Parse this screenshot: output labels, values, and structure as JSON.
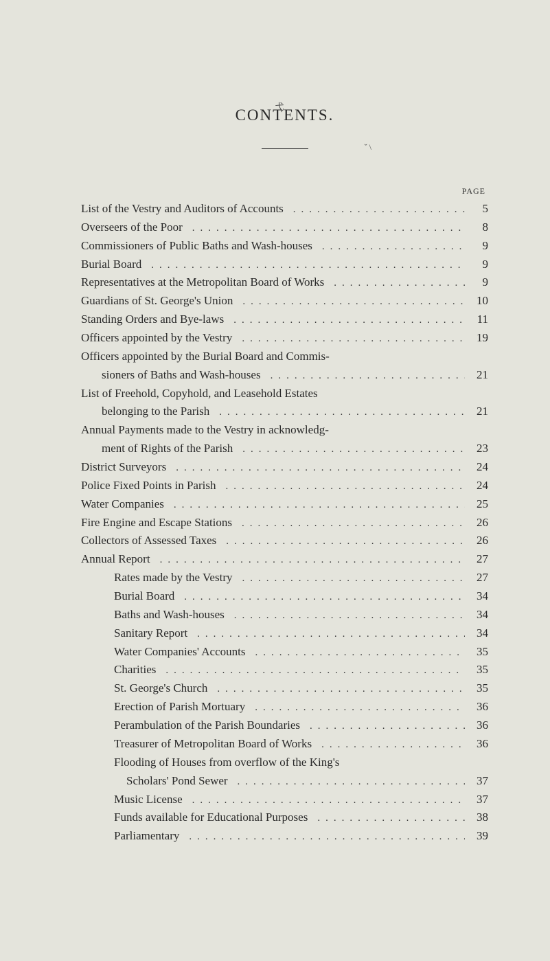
{
  "title": "CONTENTS.",
  "page_header": "PAGE",
  "colors": {
    "background": "#e4e4dc",
    "text": "#2a2a2a",
    "dots": "#3a3a3a"
  },
  "typography": {
    "title_fontsize": 23,
    "title_letterspacing": 2,
    "body_fontsize": 17,
    "line_height": 1.58,
    "page_header_fontsize": 12
  },
  "entries": [
    {
      "label": "List of the Vestry and Auditors of Accounts",
      "page": "5",
      "indent": 0
    },
    {
      "label": "Overseers of the Poor",
      "page": "8",
      "indent": 0
    },
    {
      "label": "Commissioners of Public Baths and Wash-houses",
      "page": "9",
      "indent": 0
    },
    {
      "label": "Burial Board",
      "page": "9",
      "indent": 0
    },
    {
      "label": "Representatives at the Metropolitan Board of Works",
      "page": "9",
      "indent": 0
    },
    {
      "label": "Guardians of St. George's Union",
      "page": "10",
      "indent": 0
    },
    {
      "label": "Standing Orders and Bye-laws",
      "page": "11",
      "indent": 0
    },
    {
      "label": "Officers appointed by the Vestry",
      "page": "19",
      "indent": 0
    },
    {
      "label": "Officers appointed by the Burial Board and Commis-",
      "page": "",
      "indent": 0,
      "nodots": true
    },
    {
      "label": "sioners of Baths and Wash-houses",
      "page": "21",
      "indent": 1
    },
    {
      "label": "List of Freehold, Copyhold, and Leasehold Estates",
      "page": "",
      "indent": 0,
      "nodots": true
    },
    {
      "label": "belonging to the Parish",
      "page": "21",
      "indent": 1
    },
    {
      "label": "Annual Payments made to the Vestry in acknowledg-",
      "page": "",
      "indent": 0,
      "nodots": true
    },
    {
      "label": "ment of Rights of the Parish",
      "page": "23",
      "indent": 1
    },
    {
      "label": "District Surveyors",
      "page": "24",
      "indent": 0
    },
    {
      "label": "Police Fixed Points in Parish",
      "page": "24",
      "indent": 0
    },
    {
      "label": "Water Companies",
      "page": "25",
      "indent": 0
    },
    {
      "label": "Fire Engine and Escape Stations",
      "page": "26",
      "indent": 0
    },
    {
      "label": "Collectors of Assessed Taxes",
      "page": "26",
      "indent": 0
    },
    {
      "label": "Annual Report",
      "page": "27",
      "indent": 0
    },
    {
      "label": "Rates made by the Vestry",
      "page": "27",
      "indent": 2
    },
    {
      "label": "Burial Board",
      "page": "34",
      "indent": 2
    },
    {
      "label": "Baths and Wash-houses",
      "page": "34",
      "indent": 2
    },
    {
      "label": "Sanitary Report",
      "page": "34",
      "indent": 2
    },
    {
      "label": "Water Companies' Accounts",
      "page": "35",
      "indent": 2
    },
    {
      "label": "Charities",
      "page": "35",
      "indent": 2
    },
    {
      "label": "St. George's Church",
      "page": "35",
      "indent": 2
    },
    {
      "label": "Erection of Parish Mortuary",
      "page": "36",
      "indent": 2
    },
    {
      "label": "Perambulation of the Parish Boundaries",
      "page": "36",
      "indent": 2
    },
    {
      "label": "Treasurer of Metropolitan Board of Works",
      "page": "36",
      "indent": 2
    },
    {
      "label": "Flooding of Houses from overflow of the King's",
      "page": "",
      "indent": 2,
      "nodots": true
    },
    {
      "label": "Scholars' Pond Sewer",
      "page": "37",
      "indent": 2,
      "extra_indent": 18
    },
    {
      "label": "Music License",
      "page": "37",
      "indent": 2
    },
    {
      "label": "Funds available for Educational Purposes",
      "page": "38",
      "indent": 2
    },
    {
      "label": "Parliamentary",
      "page": "39",
      "indent": 2
    }
  ]
}
